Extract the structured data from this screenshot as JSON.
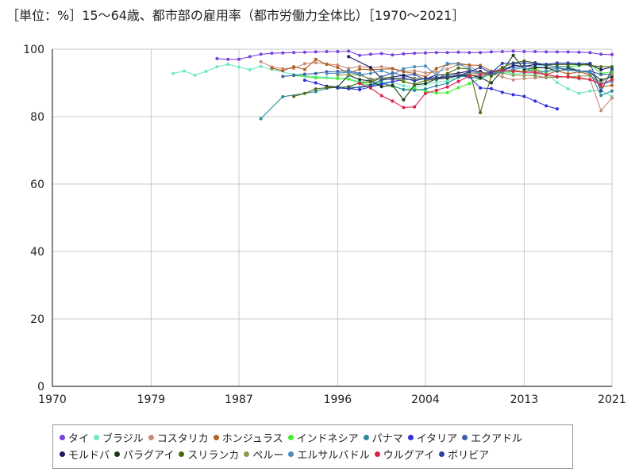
{
  "chart_data": {
    "type": "line",
    "title": "［単位：%］15～64歳、都市部の雇用率（都市労働力全体比）［1970～2021］",
    "xlim": [
      1970,
      2021
    ],
    "ylim": [
      0,
      100
    ],
    "x_ticks": [
      1970,
      1979,
      1987,
      1996,
      2004,
      2013,
      2021
    ],
    "y_ticks": [
      0,
      20,
      40,
      60,
      80,
      100
    ],
    "grid": true,
    "legend_position": "bottom",
    "series": [
      {
        "name": "タイ",
        "color": "#7b3fe0",
        "x": [
          1985,
          1986,
          1987,
          1988,
          1989,
          1990,
          1991,
          1992,
          1993,
          1994,
          1995,
          1996,
          1997,
          1998,
          1999,
          2000,
          2001,
          2002,
          2003,
          2004,
          2005,
          2006,
          2007,
          2008,
          2009,
          2010,
          2011,
          2012,
          2013,
          2014,
          2015,
          2016,
          2017,
          2018,
          2019,
          2020,
          2021
        ],
        "y": [
          97.2,
          97.0,
          97.0,
          97.8,
          98.5,
          98.8,
          98.9,
          99.0,
          99.1,
          99.2,
          99.3,
          99.3,
          99.4,
          98.2,
          98.5,
          98.7,
          98.3,
          98.6,
          98.8,
          98.9,
          99.0,
          99.0,
          99.1,
          99.0,
          99.0,
          99.2,
          99.3,
          99.4,
          99.3,
          99.3,
          99.2,
          99.2,
          99.2,
          99.1,
          99.0,
          98.5,
          98.4
        ]
      },
      {
        "name": "ブラジル",
        "color": "#6ee8c0",
        "x": [
          1981,
          1982,
          1983,
          1984,
          1985,
          1986,
          1987,
          1988,
          1989,
          1990,
          1992,
          1993,
          1995,
          1996,
          1997,
          1998,
          1999,
          2001,
          2002,
          2003,
          2004,
          2005,
          2006,
          2007,
          2008,
          2009,
          2011,
          2012,
          2013,
          2014,
          2015,
          2016,
          2017,
          2018,
          2019,
          2020,
          2021
        ],
        "y": [
          92.8,
          93.5,
          92.3,
          93.4,
          94.8,
          95.5,
          94.7,
          93.9,
          94.9,
          94.0,
          92.5,
          92.1,
          91.6,
          91.4,
          91.2,
          90.4,
          90.4,
          90.2,
          89.1,
          88.6,
          89.5,
          90.2,
          90.6,
          91.6,
          92.3,
          92.0,
          93.6,
          92.6,
          93.0,
          92.6,
          92.7,
          90.1,
          88.2,
          86.9,
          87.6,
          87.8,
          85.9
        ]
      },
      {
        "name": "コスタリカ",
        "color": "#c98c7a",
        "x": [
          1989,
          1990,
          1991,
          1992,
          1993,
          1994,
          1995,
          1996,
          1997,
          1998,
          1999,
          2000,
          2001,
          2002,
          2003,
          2004,
          2005,
          2006,
          2007,
          2008,
          2009,
          2010,
          2011,
          2012,
          2013,
          2014,
          2015,
          2016,
          2017,
          2018,
          2019,
          2020,
          2021
        ],
        "y": [
          96.3,
          94.7,
          94.2,
          94.3,
          95.7,
          96.0,
          95.6,
          95.3,
          94.3,
          94.9,
          94.5,
          94.8,
          94.3,
          93.4,
          93.6,
          93.0,
          93.3,
          94.1,
          95.5,
          95.3,
          92.6,
          92.9,
          91.8,
          90.9,
          91.3,
          91.5,
          91.6,
          91.9,
          91.7,
          91.2,
          91.0,
          81.8,
          85.5
        ]
      },
      {
        "name": "ホンジュラス",
        "color": "#b06020",
        "x": [
          1990,
          1991,
          1992,
          1993,
          1994,
          1995,
          1996,
          1997,
          1998,
          1999,
          2001,
          2002,
          2003,
          2004,
          2005,
          2006,
          2007,
          2008,
          2009,
          2010,
          2011,
          2012,
          2013,
          2014,
          2015,
          2016,
          2017,
          2018,
          2019,
          2020,
          2021
        ],
        "y": [
          94.4,
          93.6,
          94.8,
          94.0,
          97.0,
          95.5,
          94.6,
          92.8,
          94.1,
          93.9,
          94.2,
          93.3,
          92.8,
          91.8,
          94.3,
          95.5,
          95.8,
          95.3,
          95.2,
          93.5,
          93.5,
          93.8,
          93.3,
          93.9,
          92.4,
          93.6,
          92.7,
          93.3,
          92.4,
          88.8,
          89.3
        ]
      },
      {
        "name": "インドネシア",
        "color": "#44ee33",
        "x": [
          1992,
          1994,
          1996,
          1997,
          1998,
          1999,
          2000,
          2001,
          2002,
          2003,
          2004,
          2005,
          2006,
          2007,
          2008,
          2009,
          2010,
          2011,
          2012,
          2013,
          2014,
          2015,
          2016,
          2017,
          2018,
          2019,
          2020,
          2021
        ],
        "y": [
          92.2,
          91.5,
          91.3,
          91.1,
          89.9,
          89.4,
          90.1,
          89.0,
          88.0,
          88.4,
          87.5,
          87.0,
          87.1,
          88.6,
          89.8,
          91.3,
          92.6,
          93.1,
          93.3,
          93.4,
          94.2,
          93.0,
          94.6,
          94.9,
          95.1,
          95.5,
          92.8,
          93.3
        ]
      },
      {
        "name": "パナマ",
        "color": "#2a8a9a",
        "x": [
          1989,
          1991,
          1994,
          1995,
          1996,
          1997,
          1998,
          1999,
          2000,
          2001,
          2002,
          2003,
          2004,
          2005,
          2006,
          2007,
          2008,
          2009,
          2010,
          2011,
          2012,
          2013,
          2014,
          2015,
          2016,
          2017,
          2018,
          2019,
          2020,
          2021
        ],
        "y": [
          79.4,
          85.9,
          87.4,
          88.4,
          88.7,
          88.8,
          88.6,
          89.2,
          89.8,
          89.2,
          88.0,
          87.8,
          88.2,
          89.1,
          89.9,
          91.7,
          92.9,
          93.0,
          93.2,
          94.3,
          94.6,
          95.0,
          95.4,
          95.2,
          94.8,
          94.8,
          93.6,
          93.0,
          86.3,
          87.6
        ]
      },
      {
        "name": "イタリア",
        "color": "#2f2fe0",
        "x": [
          1993,
          1994,
          1995,
          1996,
          1997,
          1998,
          1999,
          2000,
          2001,
          2002,
          2003,
          2004,
          2005,
          2006,
          2007,
          2008,
          2009,
          2010,
          2011,
          2012,
          2013,
          2014,
          2015,
          2016
        ],
        "y": [
          90.8,
          90.0,
          89.0,
          88.5,
          88.3,
          88.0,
          88.8,
          89.6,
          90.4,
          91.0,
          91.1,
          91.2,
          91.4,
          91.7,
          92.6,
          91.8,
          88.5,
          88.3,
          87.2,
          86.5,
          86.0,
          84.6,
          83.2,
          82.3
        ]
      },
      {
        "name": "エクアドル",
        "color": "#3c5fa8",
        "x": [
          1991,
          1992,
          1993,
          1994,
          1995,
          1996,
          1997,
          1998,
          1999,
          2000,
          2001,
          2002,
          2003,
          2004,
          2005,
          2006,
          2007,
          2008,
          2009,
          2010,
          2011,
          2012,
          2013,
          2014,
          2015,
          2016,
          2017,
          2018,
          2019,
          2020,
          2021
        ],
        "y": [
          91.9,
          92.2,
          92.6,
          92.8,
          93.3,
          93.4,
          93.6,
          92.8,
          90.7,
          91.8,
          93.0,
          92.2,
          92.5,
          90.9,
          91.0,
          91.9,
          92.2,
          91.7,
          91.4,
          93.1,
          93.8,
          94.6,
          95.0,
          94.7,
          94.5,
          94.4,
          94.0,
          93.5,
          93.5,
          92.5,
          92.6
        ]
      },
      {
        "name": "モルドバ",
        "color": "#1e1a60",
        "x": [
          1997,
          1999,
          2000,
          2002,
          2003,
          2004,
          2005,
          2006,
          2007,
          2008,
          2009,
          2010,
          2011,
          2012,
          2013,
          2014,
          2015,
          2016,
          2017,
          2018,
          2019,
          2020,
          2021
        ],
        "y": [
          97.8,
          94.6,
          91.3,
          92.2,
          91.3,
          91.2,
          92.3,
          92.5,
          92.9,
          93.5,
          93.4,
          92.2,
          93.5,
          95.3,
          94.8,
          95.5,
          95.4,
          95.4,
          95.5,
          95.4,
          95.5,
          93.9,
          94.7
        ]
      },
      {
        "name": "パラグアイ",
        "color": "#1a3a1a",
        "x": [
          1995,
          1996,
          1997,
          1998,
          1999,
          2000,
          2001,
          2002,
          2003,
          2004,
          2005,
          2006,
          2007,
          2008,
          2009,
          2010,
          2011,
          2012,
          2013,
          2014,
          2015,
          2016,
          2017,
          2018,
          2019,
          2020,
          2021
        ],
        "y": [
          89.0,
          88.8,
          92.3,
          91.0,
          90.6,
          88.9,
          89.3,
          85.0,
          89.4,
          89.8,
          91.2,
          91.4,
          92.1,
          92.4,
          91.6,
          90.0,
          93.6,
          98.2,
          94.0,
          94.5,
          94.5,
          93.5,
          94.3,
          93.5,
          93.2,
          90.9,
          91.8
        ]
      },
      {
        "name": "スリランカ",
        "color": "#4a6a10",
        "x": [
          1992,
          1993,
          1994,
          1995,
          1996,
          1997,
          1998,
          1999,
          2000,
          2001,
          2002,
          2003,
          2004,
          2005,
          2006,
          2007,
          2008,
          2009,
          2010,
          2011,
          2012,
          2013,
          2014,
          2015,
          2016,
          2017,
          2018,
          2019,
          2020,
          2021
        ],
        "y": [
          86.0,
          86.9,
          88.2,
          88.6,
          88.6,
          88.9,
          90.0,
          90.3,
          91.4,
          91.6,
          90.4,
          89.6,
          90.7,
          91.1,
          92.8,
          94.4,
          94.1,
          81.2,
          92.0,
          94.6,
          95.9,
          96.5,
          96.0,
          95.3,
          95.5,
          95.4,
          95.6,
          95.2,
          94.8,
          94.8
        ]
      },
      {
        "name": "ペルー",
        "color": "#8a9a50",
        "x": [
          1996,
          1997,
          1998,
          1999,
          2000,
          2001,
          2002,
          2003,
          2004,
          2005,
          2006,
          2007,
          2008,
          2009,
          2010,
          2011,
          2012,
          2013,
          2014,
          2015,
          2016,
          2017,
          2018,
          2019,
          2020,
          2021
        ],
        "y": [
          92.3,
          92.5,
          92.3,
          91.2,
          91.2,
          91.1,
          91.0,
          91.2,
          91.3,
          91.6,
          91.9,
          92.4,
          92.8,
          92.9,
          93.0,
          92.9,
          92.3,
          92.2,
          92.1,
          91.6,
          91.7,
          91.8,
          92.0,
          92.1,
          90.1,
          92.6
        ]
      },
      {
        "name": "エルサルバドル",
        "color": "#4a8ac0",
        "x": [
          1995,
          1996,
          1997,
          1998,
          1999,
          2000,
          2001,
          2002,
          2003,
          2004,
          2005,
          2006,
          2007,
          2008,
          2009,
          2010,
          2011,
          2012,
          2013,
          2014,
          2015,
          2016,
          2017,
          2018,
          2019,
          2020,
          2021
        ],
        "y": [
          92.8,
          92.9,
          93.2,
          92.5,
          92.8,
          93.6,
          92.5,
          94.2,
          94.8,
          95.0,
          92.3,
          95.8,
          95.6,
          94.3,
          92.5,
          92.8,
          93.3,
          94.0,
          94.6,
          93.0,
          93.5,
          93.8,
          93.8,
          93.5,
          93.2,
          89.7,
          90.4
        ]
      },
      {
        "name": "ウルグアイ",
        "color": "#e0204a",
        "x": [
          1998,
          1999,
          2000,
          2001,
          2002,
          2003,
          2004,
          2005,
          2006,
          2007,
          2008,
          2009,
          2010,
          2011,
          2012,
          2013,
          2014,
          2015,
          2016,
          2017,
          2018,
          2019,
          2020,
          2021
        ],
        "y": [
          89.8,
          88.5,
          86.2,
          84.6,
          82.7,
          82.9,
          86.9,
          87.8,
          88.8,
          90.4,
          92.1,
          92.4,
          93.1,
          93.8,
          93.4,
          93.2,
          93.1,
          92.4,
          91.9,
          91.8,
          91.5,
          91.0,
          89.5,
          91.0
        ]
      },
      {
        "name": "ボリビア",
        "color": "#2a40a0",
        "x": [
          1996,
          1997,
          1999,
          2000,
          2001,
          2002,
          2003,
          2004,
          2005,
          2006,
          2007,
          2008,
          2009,
          2010,
          2011,
          2012,
          2013,
          2014,
          2015,
          2016,
          2017,
          2018,
          2019,
          2020,
          2021
        ],
        "y": [
          88.6,
          88.3,
          89.3,
          90.9,
          91.2,
          91.5,
          90.6,
          91.4,
          91.5,
          91.9,
          92.1,
          93.3,
          94.6,
          93.0,
          95.8,
          95.7,
          95.9,
          95.8,
          95.5,
          95.9,
          95.9,
          95.7,
          95.8,
          87.6,
          94.0
        ]
      }
    ]
  }
}
